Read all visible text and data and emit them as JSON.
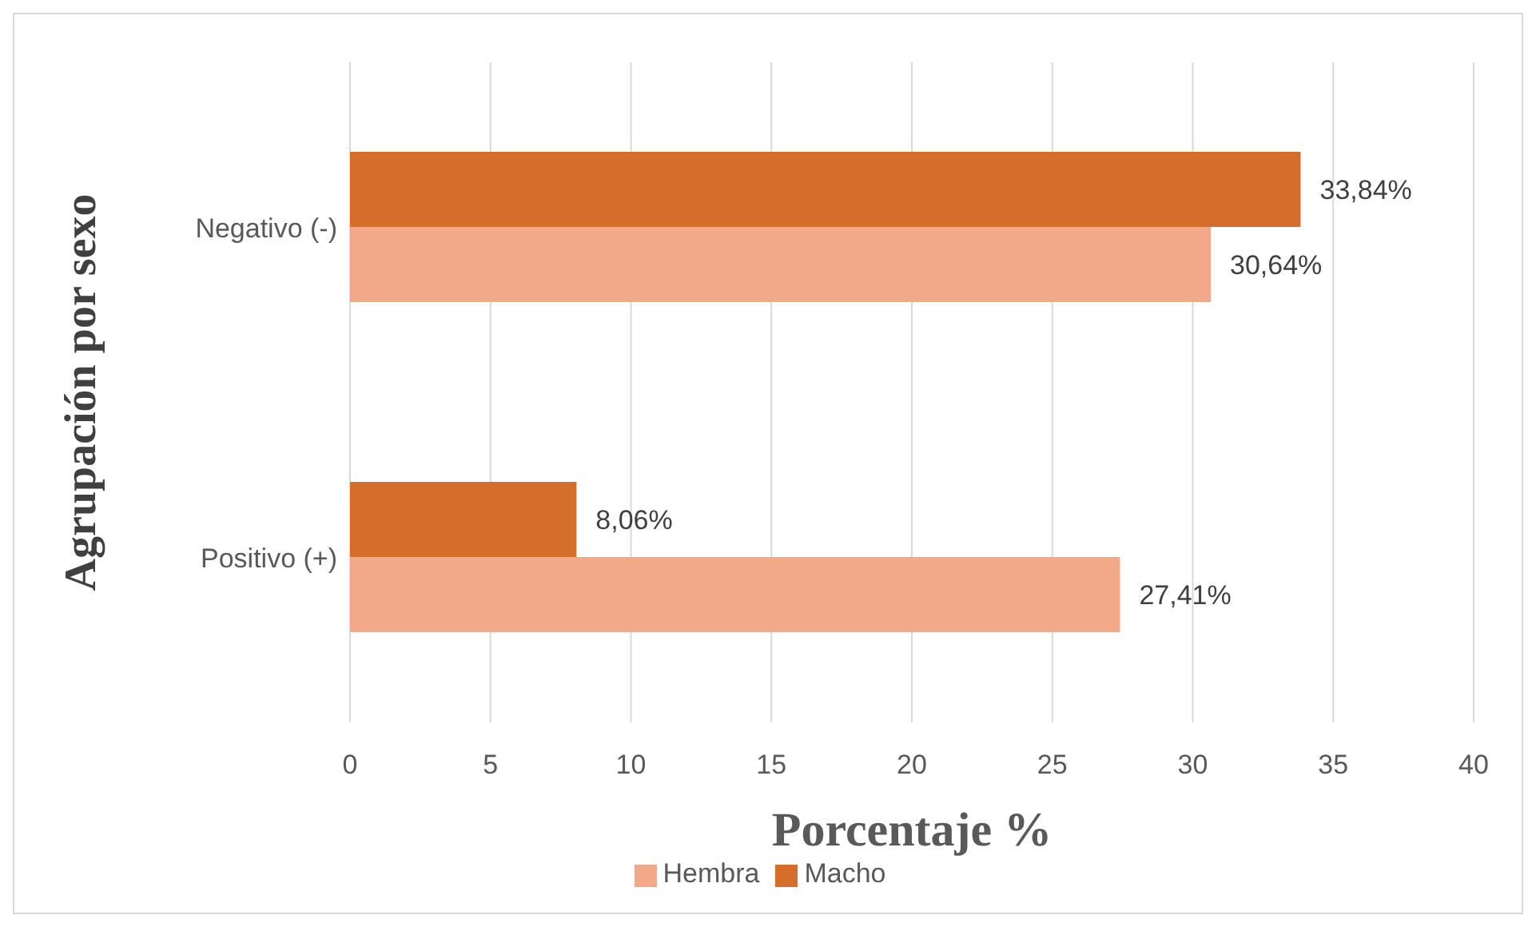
{
  "chart_data": {
    "type": "bar",
    "orientation": "horizontal",
    "xlabel": "Porcentaje %",
    "ylabel": "Agrupación por sexo",
    "categories": [
      "Negativo (-)",
      "Positivo (+)"
    ],
    "series": [
      {
        "name": "Macho",
        "color": "#d46e2a",
        "values": [
          33.84,
          8.06
        ],
        "value_labels": [
          "33,84%",
          "8,06%"
        ]
      },
      {
        "name": "Hembra",
        "color": "#f2a98a",
        "values": [
          30.64,
          27.41
        ],
        "value_labels": [
          "30,64%",
          "27,41%"
        ]
      }
    ],
    "xlim": [
      0,
      40
    ],
    "xticks": [
      0,
      5,
      10,
      15,
      20,
      25,
      30,
      35,
      40
    ],
    "grid": "x",
    "legend": "bottom"
  }
}
